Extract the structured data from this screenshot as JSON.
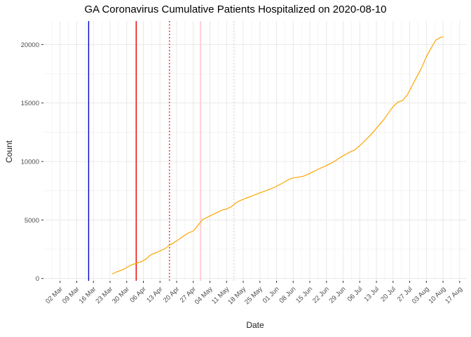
{
  "title": "GA Coronavirus Cumulative Patients Hospitalized on 2020-08-10",
  "chart_data": {
    "type": "line",
    "title": "GA Coronavirus Cumulative Patients Hospitalized on 2020-08-10",
    "xlabel": "Date",
    "ylabel": "Count",
    "grid": true,
    "legend": "none",
    "x_tick_labels": [
      "02 Mar",
      "09 Mar",
      "16 Mar",
      "23 Mar",
      "30 Mar",
      "06 Apr",
      "13 Apr",
      "20 Apr",
      "27 Apr",
      "04 May",
      "11 May",
      "18 May",
      "25 May",
      "01 Jun",
      "08 Jun",
      "15 Jun",
      "22 Jun",
      "29 Jun",
      "06 Jul",
      "13 Jul",
      "20 Jul",
      "27 Jul",
      "03 Aug",
      "10 Aug",
      "17 Aug"
    ],
    "x_tick_start_date": "2020-03-02",
    "x_tick_interval_days": 7,
    "x_domain": [
      "2020-02-24",
      "2020-08-20"
    ],
    "y_ticks": [
      0,
      5000,
      10000,
      15000,
      20000
    ],
    "y_minor_ticks": [
      2500,
      7500,
      12500,
      17500
    ],
    "y_domain": [
      -200,
      22000
    ],
    "colors": {
      "line": "#FFA500",
      "grid_major": "#E8E8E8",
      "grid_minor": "#F2F2F2",
      "tick_text": "#4D4D4D",
      "axis_tick": "#333333"
    },
    "vlines": [
      {
        "date": "2020-03-14",
        "color": "#0000CD",
        "style": "solid"
      },
      {
        "date": "2020-04-03",
        "color": "#E60000",
        "style": "solid"
      },
      {
        "date": "2020-04-17",
        "color": "#E60000",
        "style": "dotted"
      },
      {
        "date": "2020-04-30",
        "color": "#FFC0CB",
        "style": "solid"
      },
      {
        "date": "2020-05-14",
        "color": "#FFC0CB",
        "style": "dotted"
      }
    ],
    "series": [
      {
        "name": "cumulative-patients-hospitalized",
        "color": "#FFA500",
        "points": [
          [
            "2020-03-24",
            400
          ],
          [
            "2020-03-26",
            580
          ],
          [
            "2020-03-28",
            720
          ],
          [
            "2020-03-30",
            940
          ],
          [
            "2020-04-01",
            1160
          ],
          [
            "2020-04-03",
            1300
          ],
          [
            "2020-04-05",
            1420
          ],
          [
            "2020-04-07",
            1650
          ],
          [
            "2020-04-09",
            2000
          ],
          [
            "2020-04-11",
            2180
          ],
          [
            "2020-04-13",
            2350
          ],
          [
            "2020-04-15",
            2540
          ],
          [
            "2020-04-17",
            2850
          ],
          [
            "2020-04-19",
            3080
          ],
          [
            "2020-04-21",
            3350
          ],
          [
            "2020-04-23",
            3640
          ],
          [
            "2020-04-25",
            3900
          ],
          [
            "2020-04-27",
            4060
          ],
          [
            "2020-04-29",
            4560
          ],
          [
            "2020-05-01",
            5050
          ],
          [
            "2020-05-03",
            5240
          ],
          [
            "2020-05-05",
            5450
          ],
          [
            "2020-05-07",
            5640
          ],
          [
            "2020-05-09",
            5840
          ],
          [
            "2020-05-11",
            5940
          ],
          [
            "2020-05-13",
            6140
          ],
          [
            "2020-05-15",
            6480
          ],
          [
            "2020-05-17",
            6680
          ],
          [
            "2020-05-19",
            6850
          ],
          [
            "2020-05-21",
            7000
          ],
          [
            "2020-05-23",
            7160
          ],
          [
            "2020-05-25",
            7310
          ],
          [
            "2020-05-27",
            7470
          ],
          [
            "2020-05-29",
            7620
          ],
          [
            "2020-05-31",
            7780
          ],
          [
            "2020-06-02",
            7990
          ],
          [
            "2020-06-04",
            8200
          ],
          [
            "2020-06-06",
            8440
          ],
          [
            "2020-06-08",
            8600
          ],
          [
            "2020-06-10",
            8660
          ],
          [
            "2020-06-12",
            8720
          ],
          [
            "2020-06-14",
            8880
          ],
          [
            "2020-06-16",
            9090
          ],
          [
            "2020-06-18",
            9280
          ],
          [
            "2020-06-20",
            9480
          ],
          [
            "2020-06-22",
            9650
          ],
          [
            "2020-06-24",
            9870
          ],
          [
            "2020-06-26",
            10090
          ],
          [
            "2020-06-28",
            10370
          ],
          [
            "2020-06-30",
            10600
          ],
          [
            "2020-07-02",
            10820
          ],
          [
            "2020-07-04",
            11000
          ],
          [
            "2020-07-06",
            11350
          ],
          [
            "2020-07-08",
            11750
          ],
          [
            "2020-07-10",
            12150
          ],
          [
            "2020-07-12",
            12600
          ],
          [
            "2020-07-14",
            13070
          ],
          [
            "2020-07-16",
            13550
          ],
          [
            "2020-07-18",
            14120
          ],
          [
            "2020-07-20",
            14690
          ],
          [
            "2020-07-22",
            15070
          ],
          [
            "2020-07-24",
            15210
          ],
          [
            "2020-07-26",
            15700
          ],
          [
            "2020-07-28",
            16480
          ],
          [
            "2020-07-30",
            17240
          ],
          [
            "2020-08-01",
            18000
          ],
          [
            "2020-08-03",
            18950
          ],
          [
            "2020-08-05",
            19700
          ],
          [
            "2020-08-07",
            20380
          ],
          [
            "2020-08-09",
            20610
          ],
          [
            "2020-08-10",
            20640
          ]
        ]
      }
    ]
  }
}
